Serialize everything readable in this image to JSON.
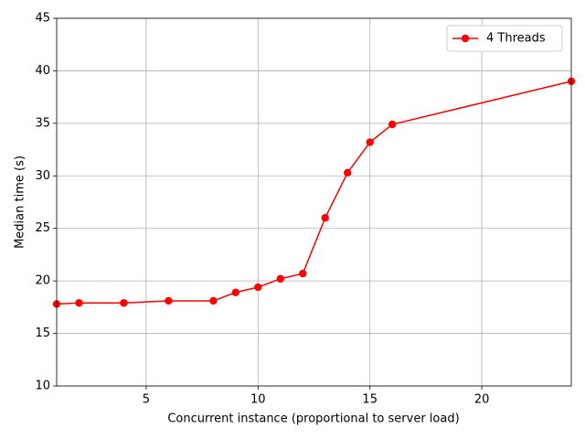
{
  "chart_data": {
    "type": "line",
    "xlabel": "Concurrent instance (proportional to server load)",
    "ylabel": "Median time (s)",
    "x": [
      1,
      2,
      4,
      6,
      8,
      9,
      10,
      11,
      12,
      13,
      14,
      15,
      16,
      24
    ],
    "series": [
      {
        "name": "4 Threads",
        "color": "#ff0000",
        "values": [
          17.8,
          17.9,
          17.9,
          18.1,
          18.1,
          18.9,
          19.4,
          20.2,
          20.7,
          26.0,
          30.3,
          33.2,
          34.9,
          39.0
        ]
      }
    ],
    "xlim": [
      1,
      24
    ],
    "ylim": [
      10,
      45
    ],
    "xticks": [
      5,
      10,
      15,
      20
    ],
    "yticks": [
      10,
      15,
      20,
      25,
      30,
      35,
      40,
      45
    ],
    "grid": true,
    "legend": "upper right"
  }
}
